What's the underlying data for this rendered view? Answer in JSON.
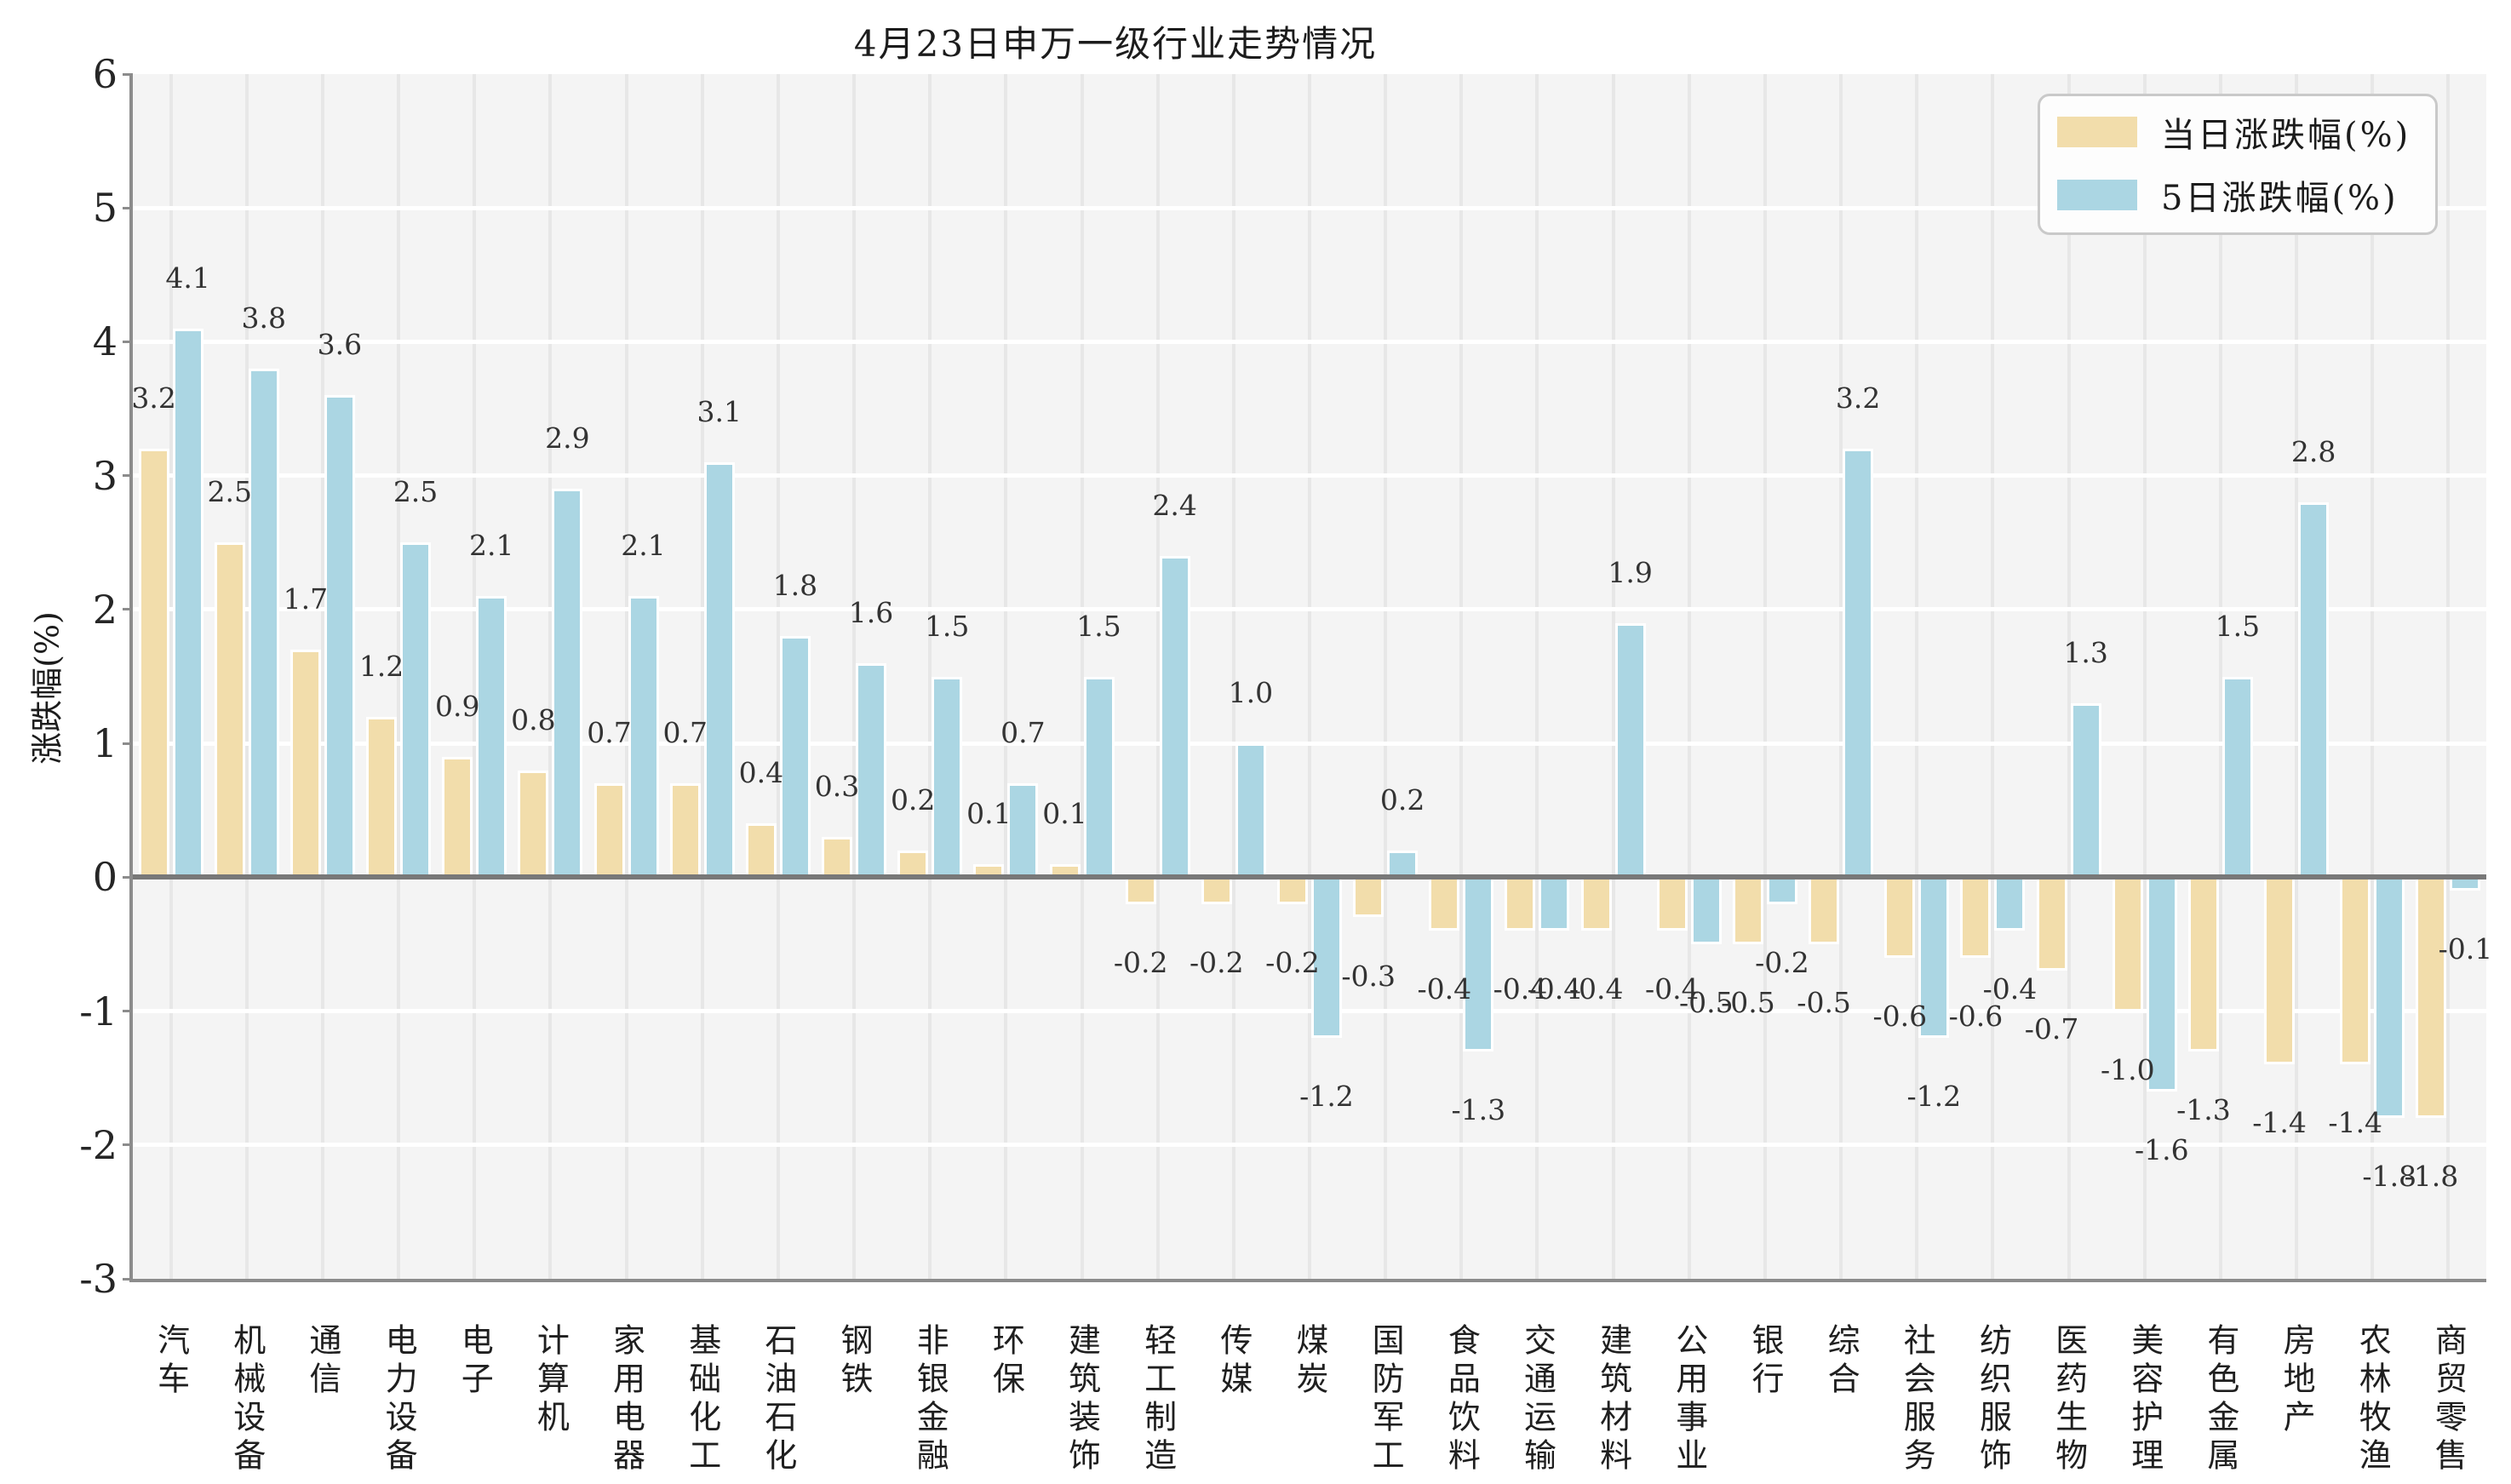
{
  "title": "4月23日申万一级行业走势情况",
  "y_axis": {
    "label": "涨跌幅(%)",
    "ticks": [
      6,
      5,
      4,
      3,
      2,
      1,
      0,
      -1,
      -2,
      -3
    ],
    "min": -3,
    "max": 6
  },
  "colors": {
    "daily_bar": "#f2ddab",
    "five_day_bar": "#abd6e3",
    "plot_background": "#f4f4f4",
    "zero_line": "#787878"
  },
  "chart_data": {
    "type": "bar",
    "title": "4月23日申万一级行业走势情况",
    "xlabel": "",
    "ylabel": "涨跌幅(%)",
    "ylim": [
      -3,
      6
    ],
    "grid": true,
    "legend_position": "upper right",
    "categories": [
      "汽车",
      "机械设备",
      "通信",
      "电力设备",
      "电子",
      "计算机",
      "家用电器",
      "基础化工",
      "石油石化",
      "钢铁",
      "非银金融",
      "环保",
      "建筑装饰",
      "轻工制造",
      "传媒",
      "煤炭",
      "国防军工",
      "食品饮料",
      "交通运输",
      "建筑材料",
      "公用事业",
      "银行",
      "综合",
      "社会服务",
      "纺织服饰",
      "医药生物",
      "美容护理",
      "有色金属",
      "房地产",
      "农林牧渔",
      "商贸零售"
    ],
    "series": [
      {
        "name": "当日涨跌幅(%)",
        "color": "#f2ddab",
        "values": [
          3.2,
          2.5,
          1.7,
          1.2,
          0.9,
          0.8,
          0.7,
          0.7,
          0.4,
          0.3,
          0.2,
          0.1,
          0.1,
          -0.2,
          -0.2,
          -0.2,
          -0.3,
          -0.4,
          -0.4,
          -0.4,
          -0.4,
          -0.5,
          -0.5,
          -0.6,
          -0.6,
          -0.7,
          -1.0,
          -1.3,
          -1.4,
          -1.4,
          -1.8
        ]
      },
      {
        "name": "5日涨跌幅(%)",
        "color": "#abd6e3",
        "values": [
          4.1,
          3.8,
          3.6,
          2.5,
          2.1,
          2.9,
          2.1,
          3.1,
          1.8,
          1.6,
          1.5,
          0.7,
          1.5,
          2.4,
          1.0,
          -1.2,
          0.2,
          -1.3,
          -0.4,
          1.9,
          -0.5,
          -0.2,
          3.2,
          -1.2,
          -0.4,
          1.3,
          -1.6,
          1.5,
          2.8,
          -1.8,
          -0.1
        ]
      }
    ]
  }
}
